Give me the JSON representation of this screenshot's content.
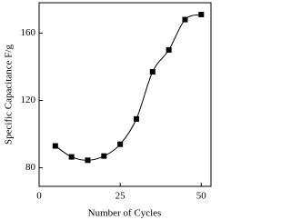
{
  "chart_data": {
    "type": "line",
    "x_label": "Number of Cycles",
    "y_label": "Specific Capacitance F/g",
    "x": [
      5,
      10,
      15,
      20,
      25,
      30,
      35,
      40,
      45,
      50
    ],
    "series": [
      {
        "name": "Specific Capacitance",
        "color": "#000000",
        "values": [
          93,
          86.5,
          84.5,
          87,
          94,
          109,
          137,
          150,
          168,
          171
        ]
      }
    ],
    "xlim": [
      0,
      53
    ],
    "xticks": [
      0,
      25,
      50
    ],
    "ylim": [
      69,
      178
    ],
    "yticks": [
      80,
      120,
      160
    ],
    "grid": false,
    "marker": "square",
    "smooth": true
  }
}
